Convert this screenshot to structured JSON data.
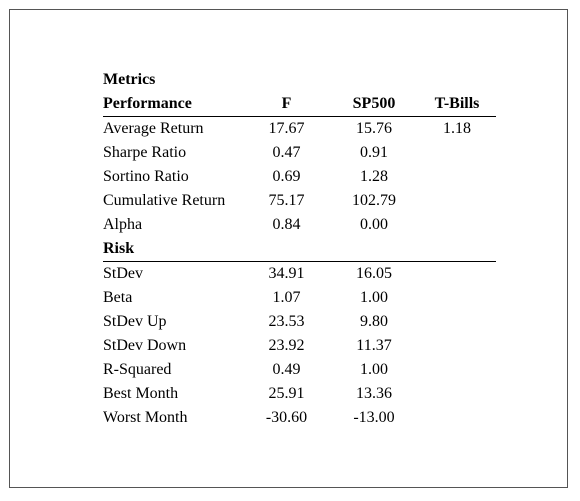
{
  "title": "Metrics",
  "columns": {
    "performance": "Performance",
    "f": "F",
    "sp500": "SP500",
    "tbills": "T-Bills"
  },
  "performance_rows": [
    {
      "label": "Average Return",
      "f": "17.67",
      "sp500": "15.76",
      "tbills": "1.18"
    },
    {
      "label": "Sharpe Ratio",
      "f": "0.47",
      "sp500": "0.91",
      "tbills": ""
    },
    {
      "label": "Sortino Ratio",
      "f": "0.69",
      "sp500": "1.28",
      "tbills": ""
    },
    {
      "label": "Cumulative Return",
      "f": "75.17",
      "sp500": "102.79",
      "tbills": ""
    },
    {
      "label": "Alpha",
      "f": "0.84",
      "sp500": "0.00",
      "tbills": ""
    }
  ],
  "risk_heading": "Risk",
  "risk_rows": [
    {
      "label": "StDev",
      "f": "34.91",
      "sp500": "16.05",
      "tbills": ""
    },
    {
      "label": "Beta",
      "f": "1.07",
      "sp500": "1.00",
      "tbills": ""
    },
    {
      "label": "StDev Up",
      "f": "23.53",
      "sp500": "9.80",
      "tbills": ""
    },
    {
      "label": "StDev Down",
      "f": "23.92",
      "sp500": "11.37",
      "tbills": ""
    },
    {
      "label": "R-Squared",
      "f": "0.49",
      "sp500": "1.00",
      "tbills": ""
    },
    {
      "label": "Best Month",
      "f": "25.91",
      "sp500": "13.36",
      "tbills": ""
    },
    {
      "label": "Worst Month",
      "f": "-30.60",
      "sp500": "-13.00",
      "tbills": ""
    }
  ]
}
